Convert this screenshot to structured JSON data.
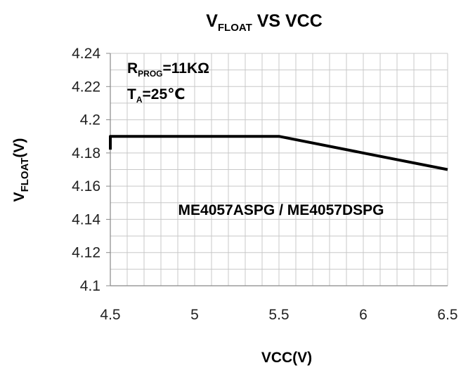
{
  "chart_data": {
    "type": "line",
    "title": {
      "main": "V",
      "sub": "FLOAT",
      "rest": " VS VCC"
    },
    "xlabel": "VCC(V)",
    "ylabel": {
      "main": "V",
      "sub": "FLOAT",
      "rest": "(V)"
    },
    "xlim": [
      4.5,
      6.5
    ],
    "ylim": [
      4.1,
      4.24
    ],
    "x_ticks": [
      4.5,
      5,
      5.5,
      6,
      6.5
    ],
    "x_tick_labels": [
      "4.5",
      "5",
      "5.5",
      "6",
      "6.5"
    ],
    "y_ticks": [
      4.1,
      4.12,
      4.14,
      4.16,
      4.18,
      4.2,
      4.22,
      4.24
    ],
    "y_tick_labels": [
      "4.1",
      "4.12",
      "4.14",
      "4.16",
      "4.18",
      "4.2",
      "4.22",
      "4.24"
    ],
    "x_minor_step": 0.1,
    "y_minor_step": 0.01,
    "grid": true,
    "series": [
      {
        "x": [
          4.5,
          4.5,
          5.0,
          5.5,
          6.0,
          6.5
        ],
        "y": [
          4.182,
          4.19,
          4.19,
          4.19,
          4.18,
          4.17
        ]
      }
    ],
    "annotations": [
      {
        "main": "R",
        "sub": "PROG",
        "rest": "=11KΩ"
      },
      {
        "main": "T",
        "sub": "A",
        "rest": "=25℃"
      },
      {
        "main": "ME4057ASPG / ME4057DSPG",
        "sub": "",
        "rest": ""
      }
    ],
    "line_color": "#000000",
    "grid_color": "#c8c8c8"
  }
}
